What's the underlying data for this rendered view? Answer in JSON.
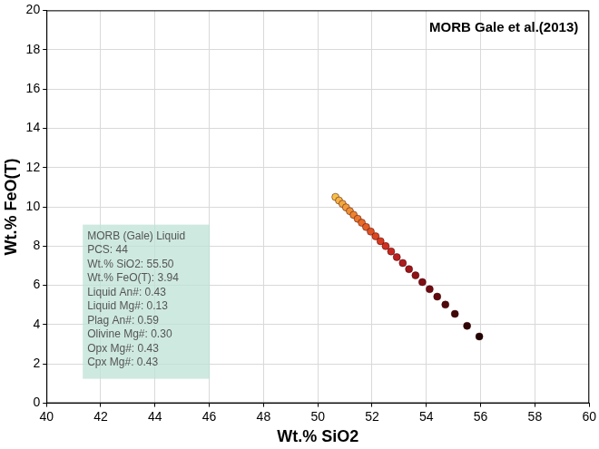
{
  "chart_data": {
    "type": "scatter",
    "title": "MORB Gale et al.(2013)",
    "x_label": "Wt.% SiO2",
    "y_label": "Wt.% FeO(T)",
    "x": [
      50.65,
      50.78,
      50.91,
      51.04,
      51.18,
      51.32,
      51.47,
      51.62,
      51.78,
      51.95,
      52.13,
      52.31,
      52.5,
      52.7,
      52.91,
      53.13,
      53.36,
      53.6,
      53.85,
      54.12,
      54.4,
      54.7,
      55.05,
      55.5,
      55.95
    ],
    "values": [
      10.5,
      10.32,
      10.15,
      9.97,
      9.78,
      9.59,
      9.39,
      9.19,
      8.97,
      8.74,
      8.5,
      8.25,
      8.0,
      7.73,
      7.44,
      7.14,
      6.83,
      6.51,
      6.17,
      5.81,
      5.43,
      5.02,
      4.55,
      3.94,
      3.4
    ],
    "colors": [
      "#f7c04a",
      "#f5b445",
      "#f3a840",
      "#f19c3b",
      "#ef9036",
      "#ed8431",
      "#ea782d",
      "#e76b29",
      "#e35f26",
      "#df5223",
      "#db4621",
      "#d63a20",
      "#cf2f20",
      "#c52720",
      "#b92020",
      "#ac1b1d",
      "#9e161a",
      "#8f1217",
      "#800e14",
      "#700b11",
      "#600a0e",
      "#500a0b",
      "#400808",
      "#300505",
      "#200303"
    ],
    "marker": "circle",
    "xlim": [
      40,
      60
    ],
    "xticks": [
      40,
      42,
      44,
      46,
      48,
      50,
      52,
      54,
      56,
      58,
      60
    ],
    "ylim": [
      0,
      20
    ],
    "yticks": [
      0,
      2,
      4,
      6,
      8,
      10,
      12,
      14,
      16,
      18,
      20
    ],
    "grid": true,
    "annotations": [
      "MORB (Gale) Liquid",
      "PCS: 44",
      "Wt.% SiO2: 55.50",
      "Wt.% FeO(T): 3.94",
      "Liquid An#: 0.43",
      "Liquid Mg#: 0.13",
      "Plag An#: 0.59",
      "Olivine Mg#: 0.30",
      "Opx Mg#: 0.43",
      "Cpx Mg#: 0.43"
    ]
  }
}
